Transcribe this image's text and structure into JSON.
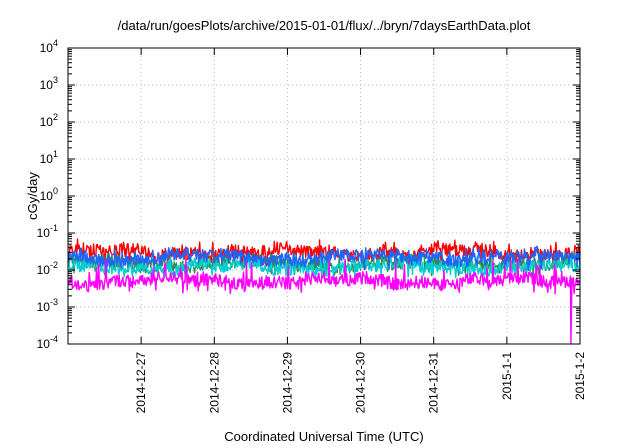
{
  "chart_data": {
    "type": "line",
    "title": "/data/run/goesPlots/archive/2015-01-01/flux/../bryn/7daysEarthData.plot",
    "xlabel": "Coordinated Universal Time (UTC)",
    "ylabel": "cGy/day",
    "yscale": "log",
    "ylim": [
      0.0001,
      10000
    ],
    "xlim": [
      "2014-12-26T00:00",
      "2015-01-02T00:00"
    ],
    "grid": true,
    "x_ticks": [
      "2014-12-27",
      "2014-12-28",
      "2014-12-29",
      "2014-12-30",
      "2014-12-31",
      "2015-1-1",
      "2015-1-2"
    ],
    "y_ticks": [
      {
        "value": 0.0001,
        "base": "10",
        "exp": "-4"
      },
      {
        "value": 0.001,
        "base": "10",
        "exp": "-3"
      },
      {
        "value": 0.01,
        "base": "10",
        "exp": "-2"
      },
      {
        "value": 0.1,
        "base": "10",
        "exp": "-1"
      },
      {
        "value": 1,
        "base": "10",
        "exp": "0"
      },
      {
        "value": 10,
        "base": "10",
        "exp": "1"
      },
      {
        "value": 100,
        "base": "10",
        "exp": "2"
      },
      {
        "value": 1000,
        "base": "10",
        "exp": "3"
      },
      {
        "value": 10000,
        "base": "10",
        "exp": "4"
      }
    ],
    "series": [
      {
        "color": "#ff0000",
        "typical": 0.03,
        "low": 0.012,
        "high": 0.07
      },
      {
        "color": "#2e8b57",
        "typical": 0.015,
        "low": 0.007,
        "high": 0.03
      },
      {
        "color": "#00ced1",
        "typical": 0.012,
        "low": 0.006,
        "high": 0.025
      },
      {
        "color": "#1e64ff",
        "typical": 0.022,
        "low": 0.01,
        "high": 0.04
      },
      {
        "color": "#ff00ff",
        "typical": 0.005,
        "low": 0.0022,
        "high": 0.02,
        "dip": {
          "x": "2015-01-01T21:00",
          "value": 0.0001
        }
      }
    ]
  }
}
